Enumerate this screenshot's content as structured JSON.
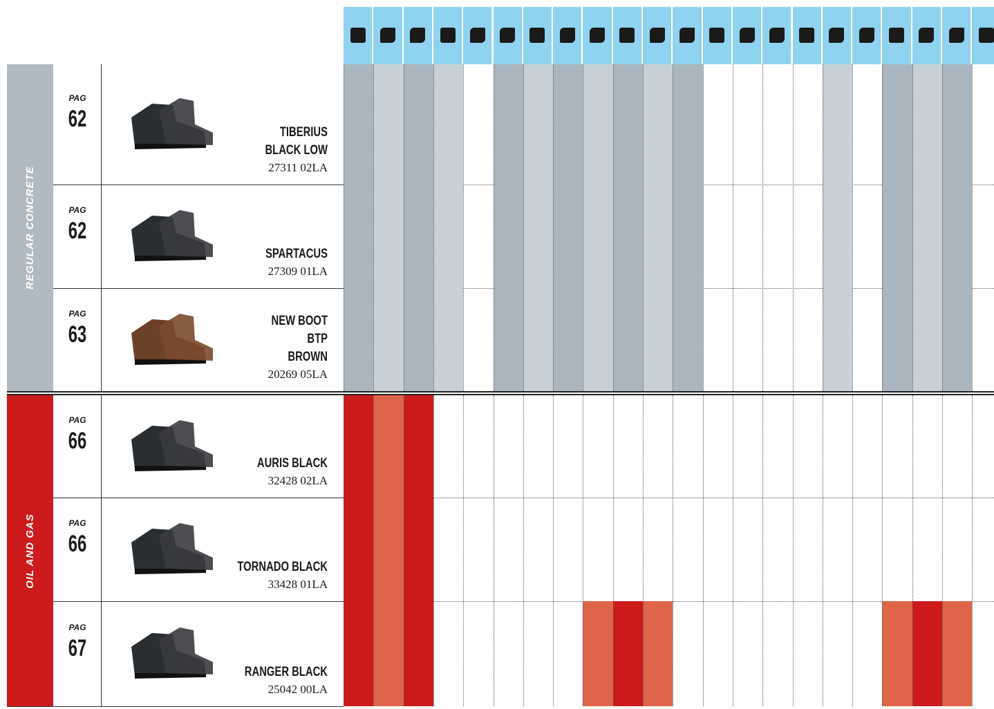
{
  "pag_label": "PAG",
  "header": {
    "color": "#8fd3f0",
    "columns": 22
  },
  "sections": [
    {
      "label": "REGULAR CONCRETE",
      "band_color": "#b0bac2",
      "dark": "#aab6bf",
      "light": "#c6d0d6",
      "products": [
        {
          "page": 62,
          "name": [
            "TIBERIUS",
            "BLACK LOW"
          ],
          "code": "27311 02LA",
          "cells": [
            2,
            1,
            2,
            1,
            0,
            2,
            1,
            2,
            1,
            2,
            1,
            2,
            0,
            0,
            0,
            0,
            1,
            0,
            2,
            1,
            2,
            0
          ]
        },
        {
          "page": 62,
          "name": [
            "SPARTACUS"
          ],
          "code": "27309 01LA",
          "cells": [
            2,
            1,
            2,
            1,
            0,
            2,
            1,
            2,
            1,
            2,
            1,
            2,
            0,
            0,
            0,
            0,
            1,
            0,
            2,
            1,
            2,
            0
          ]
        },
        {
          "page": 63,
          "name": [
            "NEW BOOT",
            "BTP",
            "BROWN"
          ],
          "code": "20269 05LA",
          "cells": [
            2,
            1,
            2,
            1,
            0,
            2,
            1,
            2,
            1,
            2,
            1,
            2,
            0,
            0,
            0,
            0,
            1,
            0,
            2,
            1,
            2,
            0
          ]
        }
      ]
    },
    {
      "label": "OIL AND GAS",
      "band_color": "#cc1a1d",
      "dark": "#cc1a1d",
      "light": "#de6549",
      "products": [
        {
          "page": 66,
          "name": [
            "AURIS BLACK"
          ],
          "code": "32428 02LA",
          "cells": [
            2,
            1,
            2,
            0,
            0,
            0,
            0,
            0,
            0,
            0,
            0,
            0,
            0,
            0,
            0,
            0,
            0,
            0,
            0,
            0,
            0,
            0
          ]
        },
        {
          "page": 66,
          "name": [
            "TORNADO BLACK"
          ],
          "code": "33428 01LA",
          "cells": [
            2,
            1,
            2,
            0,
            0,
            0,
            0,
            0,
            0,
            0,
            0,
            0,
            0,
            0,
            0,
            0,
            0,
            0,
            0,
            0,
            0,
            0
          ]
        },
        {
          "page": 67,
          "name": [
            "RANGER BLACK"
          ],
          "code": "25042 00LA",
          "cells": [
            2,
            1,
            2,
            0,
            0,
            0,
            0,
            0,
            1,
            2,
            1,
            0,
            0,
            0,
            0,
            0,
            0,
            0,
            1,
            2,
            1,
            0
          ]
        }
      ]
    }
  ]
}
